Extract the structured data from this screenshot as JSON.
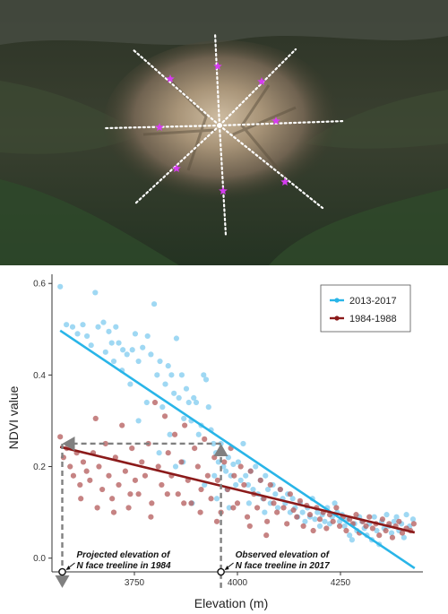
{
  "colors": {
    "recent": "#29b5e8",
    "recent_points": "#7fcbef",
    "early": "#8b1a1a",
    "early_points": "#b35a5a",
    "guide": "#808080",
    "ridge_points": "#ffffff",
    "sample_star": "#d63cf0"
  },
  "map": {
    "transect_count": 8,
    "sample_star_icon": "purple-star-icon"
  },
  "chart_data": {
    "type": "scatter",
    "xlabel": "Elevation (m)",
    "ylabel": "NDVI value",
    "xlim": [
      3550,
      4450
    ],
    "ylim": [
      -0.03,
      0.62
    ],
    "xticks": [
      3750,
      4000,
      4250
    ],
    "yticks": [
      0.0,
      0.2,
      0.4,
      0.6
    ],
    "xtick_labels": [
      "3750",
      "4000",
      "4250"
    ],
    "ytick_labels": [
      "0.0",
      "0.2",
      "0.4",
      "0.6"
    ],
    "legend_position": "top-right",
    "series": [
      {
        "name": "2013-2017",
        "color": "#29b5e8",
        "points": [
          [
            3570,
            0.593
          ],
          [
            3585,
            0.51
          ],
          [
            3600,
            0.505
          ],
          [
            3612,
            0.49
          ],
          [
            3625,
            0.51
          ],
          [
            3635,
            0.485
          ],
          [
            3645,
            0.465
          ],
          [
            3655,
            0.58
          ],
          [
            3662,
            0.505
          ],
          [
            3675,
            0.515
          ],
          [
            3688,
            0.495
          ],
          [
            3695,
            0.47
          ],
          [
            3705,
            0.505
          ],
          [
            3712,
            0.47
          ],
          [
            3722,
            0.455
          ],
          [
            3732,
            0.445
          ],
          [
            3745,
            0.455
          ],
          [
            3752,
            0.49
          ],
          [
            3760,
            0.43
          ],
          [
            3770,
            0.46
          ],
          [
            3782,
            0.485
          ],
          [
            3790,
            0.445
          ],
          [
            3798,
            0.555
          ],
          [
            3805,
            0.4
          ],
          [
            3812,
            0.43
          ],
          [
            3818,
            0.33
          ],
          [
            3825,
            0.38
          ],
          [
            3832,
            0.42
          ],
          [
            3840,
            0.4
          ],
          [
            3846,
            0.36
          ],
          [
            3852,
            0.48
          ],
          [
            3858,
            0.35
          ],
          [
            3865,
            0.4
          ],
          [
            3870,
            0.305
          ],
          [
            3876,
            0.37
          ],
          [
            3882,
            0.34
          ],
          [
            3888,
            0.3
          ],
          [
            3894,
            0.35
          ],
          [
            3900,
            0.34
          ],
          [
            3906,
            0.27
          ],
          [
            3912,
            0.29
          ],
          [
            3918,
            0.4
          ],
          [
            3924,
            0.39
          ],
          [
            3930,
            0.33
          ],
          [
            3936,
            0.28
          ],
          [
            3942,
            0.25
          ],
          [
            3948,
            0.23
          ],
          [
            3954,
            0.21
          ],
          [
            3960,
            0.25
          ],
          [
            3966,
            0.2
          ],
          [
            3972,
            0.19
          ],
          [
            3978,
            0.22
          ],
          [
            3984,
            0.18
          ],
          [
            3990,
            0.205
          ],
          [
            3996,
            0.16
          ],
          [
            4002,
            0.21
          ],
          [
            4008,
            0.17
          ],
          [
            4014,
            0.25
          ],
          [
            4020,
            0.18
          ],
          [
            4026,
            0.16
          ],
          [
            4032,
            0.19
          ],
          [
            4038,
            0.15
          ],
          [
            4044,
            0.2
          ],
          [
            4050,
            0.14
          ],
          [
            4056,
            0.17
          ],
          [
            4062,
            0.13
          ],
          [
            4068,
            0.18
          ],
          [
            4074,
            0.15
          ],
          [
            4080,
            0.12
          ],
          [
            4086,
            0.16
          ],
          [
            4092,
            0.14
          ],
          [
            4098,
            0.11
          ],
          [
            4104,
            0.15
          ],
          [
            4110,
            0.13
          ],
          [
            4116,
            0.12
          ],
          [
            4122,
            0.14
          ],
          [
            4128,
            0.1
          ],
          [
            4134,
            0.13
          ],
          [
            4140,
            0.11
          ],
          [
            4146,
            0.09
          ],
          [
            4152,
            0.12
          ],
          [
            4158,
            0.1
          ],
          [
            4164,
            0.08
          ],
          [
            4170,
            0.11
          ],
          [
            4176,
            0.09
          ],
          [
            4182,
            0.13
          ],
          [
            4188,
            0.085
          ],
          [
            4194,
            0.1
          ],
          [
            4200,
            0.07
          ],
          [
            4206,
            0.095
          ],
          [
            4212,
            0.08
          ],
          [
            4218,
            0.11
          ],
          [
            4224,
            0.075
          ],
          [
            4230,
            0.09
          ],
          [
            4236,
            0.12
          ],
          [
            4242,
            0.1
          ],
          [
            4248,
            0.08
          ],
          [
            4254,
            0.095
          ],
          [
            4260,
            0.07
          ],
          [
            4266,
            0.085
          ],
          [
            4272,
            0.05
          ],
          [
            4278,
            0.04
          ],
          [
            4284,
            0.075
          ],
          [
            4290,
            0.06
          ],
          [
            4296,
            0.09
          ],
          [
            4302,
            0.08
          ],
          [
            4308,
            0.065
          ],
          [
            4314,
            0.05
          ],
          [
            4320,
            0.075
          ],
          [
            4326,
            0.04
          ],
          [
            4332,
            0.09
          ],
          [
            4338,
            0.06
          ],
          [
            4344,
            0.03
          ],
          [
            4350,
            0.08
          ],
          [
            4356,
            0.065
          ],
          [
            4362,
            0.095
          ],
          [
            4368,
            0.07
          ],
          [
            4374,
            0.055
          ],
          [
            4380,
            0.08
          ],
          [
            4386,
            0.09
          ],
          [
            4392,
            0.06
          ],
          [
            4398,
            0.075
          ],
          [
            4404,
            0.045
          ],
          [
            4410,
            0.095
          ],
          [
            4418,
            0.07
          ],
          [
            4426,
            0.085
          ],
          [
            3890,
            0.12
          ],
          [
            3920,
            0.16
          ],
          [
            3950,
            0.13
          ],
          [
            3980,
            0.11
          ],
          [
            3850,
            0.2
          ],
          [
            3810,
            0.23
          ],
          [
            3780,
            0.34
          ],
          [
            3740,
            0.38
          ],
          [
            3720,
            0.41
          ],
          [
            3700,
            0.43
          ],
          [
            3680,
            0.45
          ],
          [
            3760,
            0.3
          ],
          [
            3836,
            0.27
          ],
          [
            3868,
            0.21
          ],
          [
            3944,
            0.18
          ],
          [
            3975,
            0.15
          ],
          [
            4028,
            0.12
          ],
          [
            4066,
            0.1
          ]
        ]
      },
      {
        "name": "1984-1988",
        "color": "#8b1a1a",
        "points": [
          [
            3570,
            0.265
          ],
          [
            3578,
            0.22
          ],
          [
            3586,
            0.24
          ],
          [
            3594,
            0.2
          ],
          [
            3602,
            0.18
          ],
          [
            3610,
            0.23
          ],
          [
            3618,
            0.16
          ],
          [
            3626,
            0.21
          ],
          [
            3634,
            0.19
          ],
          [
            3642,
            0.17
          ],
          [
            3650,
            0.23
          ],
          [
            3656,
            0.305
          ],
          [
            3664,
            0.2
          ],
          [
            3672,
            0.15
          ],
          [
            3680,
            0.25
          ],
          [
            3688,
            0.18
          ],
          [
            3696,
            0.13
          ],
          [
            3704,
            0.22
          ],
          [
            3712,
            0.16
          ],
          [
            3720,
            0.29
          ],
          [
            3728,
            0.19
          ],
          [
            3736,
            0.11
          ],
          [
            3744,
            0.24
          ],
          [
            3752,
            0.17
          ],
          [
            3760,
            0.14
          ],
          [
            3768,
            0.21
          ],
          [
            3776,
            0.18
          ],
          [
            3784,
            0.25
          ],
          [
            3792,
            0.12
          ],
          [
            3800,
            0.34
          ],
          [
            3808,
            0.2
          ],
          [
            3816,
            0.16
          ],
          [
            3824,
            0.31
          ],
          [
            3832,
            0.23
          ],
          [
            3840,
            0.18
          ],
          [
            3848,
            0.27
          ],
          [
            3856,
            0.14
          ],
          [
            3864,
            0.21
          ],
          [
            3872,
            0.29
          ],
          [
            3880,
            0.17
          ],
          [
            3888,
            0.12
          ],
          [
            3896,
            0.24
          ],
          [
            3904,
            0.2
          ],
          [
            3912,
            0.15
          ],
          [
            3920,
            0.26
          ],
          [
            3928,
            0.18
          ],
          [
            3936,
            0.13
          ],
          [
            3944,
            0.22
          ],
          [
            3952,
            0.17
          ],
          [
            3960,
            0.1
          ],
          [
            3968,
            0.21
          ],
          [
            3976,
            0.15
          ],
          [
            3984,
            0.24
          ],
          [
            3992,
            0.18
          ],
          [
            4000,
            0.12
          ],
          [
            4008,
            0.2
          ],
          [
            4016,
            0.16
          ],
          [
            4024,
            0.09
          ],
          [
            4032,
            0.19
          ],
          [
            4040,
            0.14
          ],
          [
            4048,
            0.11
          ],
          [
            4056,
            0.17
          ],
          [
            4064,
            0.13
          ],
          [
            4072,
            0.08
          ],
          [
            4080,
            0.16
          ],
          [
            4088,
            0.12
          ],
          [
            4096,
            0.1
          ],
          [
            4104,
            0.15
          ],
          [
            4112,
            0.11
          ],
          [
            4120,
            0.075
          ],
          [
            4128,
            0.14
          ],
          [
            4136,
            0.105
          ],
          [
            4144,
            0.09
          ],
          [
            4152,
            0.125
          ],
          [
            4160,
            0.07
          ],
          [
            4168,
            0.115
          ],
          [
            4176,
            0.095
          ],
          [
            4184,
            0.06
          ],
          [
            4192,
            0.11
          ],
          [
            4200,
            0.085
          ],
          [
            4208,
            0.1
          ],
          [
            4216,
            0.065
          ],
          [
            4224,
            0.095
          ],
          [
            4232,
            0.08
          ],
          [
            4240,
            0.11
          ],
          [
            4248,
            0.07
          ],
          [
            4256,
            0.09
          ],
          [
            4264,
            0.06
          ],
          [
            4272,
            0.085
          ],
          [
            4280,
            0.075
          ],
          [
            4288,
            0.095
          ],
          [
            4296,
            0.055
          ],
          [
            4304,
            0.08
          ],
          [
            4312,
            0.07
          ],
          [
            4320,
            0.09
          ],
          [
            4328,
            0.065
          ],
          [
            4336,
            0.075
          ],
          [
            4344,
            0.05
          ],
          [
            4352,
            0.085
          ],
          [
            4360,
            0.06
          ],
          [
            4368,
            0.075
          ],
          [
            4376,
            0.045
          ],
          [
            4384,
            0.07
          ],
          [
            4392,
            0.08
          ],
          [
            4400,
            0.055
          ],
          [
            4410,
            0.065
          ],
          [
            4420,
            0.06
          ],
          [
            4428,
            0.075
          ],
          [
            3620,
            0.13
          ],
          [
            3660,
            0.11
          ],
          [
            3700,
            0.1
          ],
          [
            3740,
            0.14
          ],
          [
            3790,
            0.09
          ],
          [
            3830,
            0.14
          ],
          [
            3870,
            0.12
          ],
          [
            3910,
            0.1
          ],
          [
            3950,
            0.08
          ],
          [
            3990,
            0.11
          ],
          [
            4030,
            0.07
          ],
          [
            4070,
            0.05
          ]
        ]
      }
    ],
    "trendlines": [
      {
        "series": "2013-2017",
        "x": [
          3570,
          4430
        ],
        "y": [
          0.497,
          -0.022
        ]
      },
      {
        "series": "1984-1988",
        "x": [
          3570,
          4430
        ],
        "y": [
          0.243,
          0.056
        ]
      }
    ],
    "guides": [
      {
        "from": [
          3960,
          -0.065
        ],
        "to": [
          3960,
          0.25
        ],
        "arrow": "to"
      },
      {
        "from": [
          3960,
          0.25
        ],
        "to": [
          3575,
          0.25
        ],
        "arrow": "to"
      },
      {
        "from": [
          3575,
          0.25
        ],
        "to": [
          3575,
          -0.065
        ],
        "arrow": "to"
      }
    ],
    "annotations": [
      {
        "lines": [
          "Projected elevation of",
          "N face treeline in 1984"
        ],
        "x": 3575
      },
      {
        "lines": [
          "Observed elevation of",
          "N face treeline in 2017"
        ],
        "x": 3960
      }
    ]
  }
}
